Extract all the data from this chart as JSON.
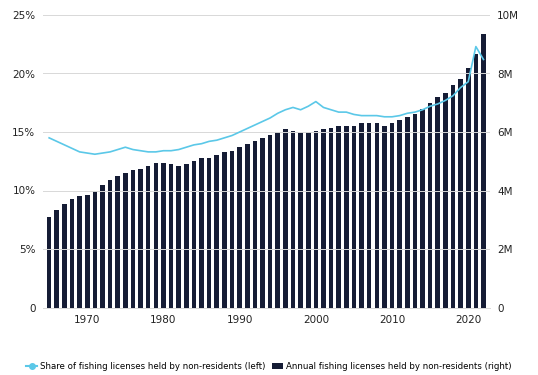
{
  "years": [
    1965,
    1966,
    1967,
    1968,
    1969,
    1970,
    1971,
    1972,
    1973,
    1974,
    1975,
    1976,
    1977,
    1978,
    1979,
    1980,
    1981,
    1982,
    1983,
    1984,
    1985,
    1986,
    1987,
    1988,
    1989,
    1990,
    1991,
    1992,
    1993,
    1994,
    1995,
    1996,
    1997,
    1998,
    1999,
    2000,
    2001,
    2002,
    2003,
    2004,
    2005,
    2006,
    2007,
    2008,
    2009,
    2010,
    2011,
    2012,
    2013,
    2014,
    2015,
    2016,
    2017,
    2018,
    2019,
    2020,
    2021,
    2022
  ],
  "bar_values": [
    3100000,
    3350000,
    3550000,
    3700000,
    3800000,
    3850000,
    4000000,
    4200000,
    4350000,
    4500000,
    4600000,
    4700000,
    4750000,
    4850000,
    4950000,
    4950000,
    4900000,
    4850000,
    4900000,
    5000000,
    5100000,
    5100000,
    5200000,
    5300000,
    5350000,
    5500000,
    5600000,
    5700000,
    5800000,
    5900000,
    6000000,
    6100000,
    6050000,
    5950000,
    6000000,
    6050000,
    6100000,
    6150000,
    6200000,
    6200000,
    6200000,
    6300000,
    6300000,
    6300000,
    6200000,
    6300000,
    6400000,
    6500000,
    6600000,
    6800000,
    7000000,
    7200000,
    7350000,
    7600000,
    7800000,
    8200000,
    8650000,
    9350000
  ],
  "line_values": [
    14.5,
    14.2,
    13.9,
    13.6,
    13.3,
    13.2,
    13.1,
    13.2,
    13.3,
    13.5,
    13.7,
    13.5,
    13.4,
    13.3,
    13.3,
    13.4,
    13.4,
    13.5,
    13.7,
    13.9,
    14.0,
    14.2,
    14.3,
    14.5,
    14.7,
    15.0,
    15.3,
    15.6,
    15.9,
    16.2,
    16.6,
    16.9,
    17.1,
    16.9,
    17.2,
    17.6,
    17.1,
    16.9,
    16.7,
    16.7,
    16.5,
    16.4,
    16.4,
    16.4,
    16.3,
    16.3,
    16.4,
    16.6,
    16.7,
    16.9,
    17.2,
    17.4,
    17.7,
    18.1,
    18.8,
    19.3,
    22.3,
    21.2
  ],
  "bar_color": "#151c35",
  "line_color": "#5bc8e8",
  "background_color": "#ffffff",
  "grid_color": "#d8d8d8",
  "left_ylim": [
    0,
    25
  ],
  "right_ylim": [
    0,
    10000000
  ],
  "left_yticks": [
    0,
    5,
    10,
    15,
    20,
    25
  ],
  "right_yticks": [
    0,
    2000000,
    4000000,
    6000000,
    8000000,
    10000000
  ],
  "left_ytick_labels": [
    "0",
    "5%",
    "10%",
    "15%",
    "20%",
    "25%"
  ],
  "right_ytick_labels": [
    "0",
    "2M",
    "4M",
    "6M",
    "8M",
    "10M"
  ],
  "xticks": [
    1970,
    1980,
    1990,
    2000,
    2010,
    2020
  ],
  "legend_bar_label": "Annual fishing licenses held by non-residents (right)",
  "legend_line_label": "Share of fishing licenses held by non-residents (left)",
  "text_color": "#222222",
  "tick_fontsize": 7.5,
  "legend_fontsize": 6.2
}
